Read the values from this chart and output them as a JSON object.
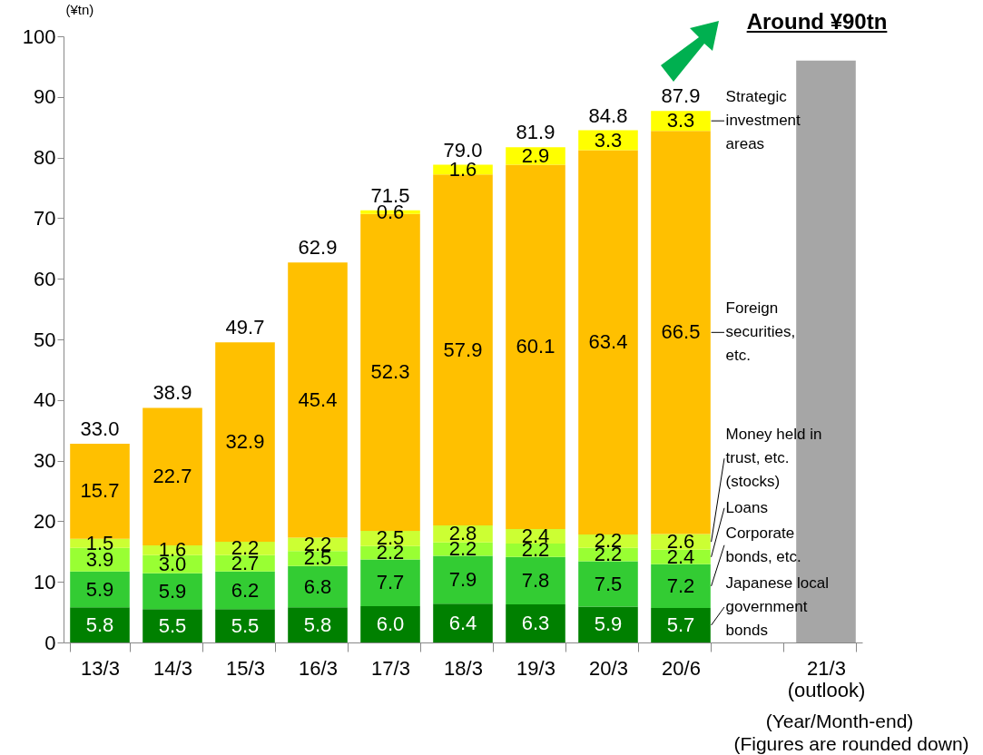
{
  "chart_data": {
    "type": "bar",
    "stacked": true,
    "data_labels": true,
    "ylabel": "(¥tn)",
    "categories": [
      "13/3",
      "14/3",
      "15/3",
      "16/3",
      "17/3",
      "18/3",
      "19/3",
      "20/3",
      "20/6",
      null,
      "21/3 (outlook)"
    ],
    "ylim": [
      0,
      100
    ],
    "yticks": [
      0,
      10,
      20,
      30,
      40,
      50,
      60,
      70,
      80,
      90,
      100
    ],
    "series": [
      {
        "name": "Japanese local government bonds",
        "color": "#008000",
        "values": [
          5.8,
          5.5,
          5.5,
          5.8,
          6.0,
          6.4,
          6.3,
          5.9,
          5.7,
          null,
          null
        ],
        "value_labels": [
          "5.8",
          "5.5",
          "5.5",
          "5.8",
          "6.0",
          "6.4",
          "6.3",
          "5.9",
          "5.7",
          null,
          null
        ]
      },
      {
        "name": "Corporate bonds, etc.",
        "color": "#33cc33",
        "values": [
          5.9,
          5.9,
          6.2,
          6.8,
          7.7,
          7.9,
          7.8,
          7.5,
          7.2,
          null,
          null
        ]
      },
      {
        "name": "Loans",
        "color": "#99ff33",
        "values": [
          3.9,
          3.0,
          2.7,
          2.5,
          2.2,
          2.2,
          2.2,
          2.2,
          2.4,
          null,
          null
        ],
        "value_labels": [
          "3.9",
          "3.0",
          "2.7",
          "2.5",
          "2.2",
          "2.2",
          "2.2",
          "2.2",
          "2.4",
          null,
          null
        ]
      },
      {
        "name": "Money held in trust, etc. (stocks)",
        "color": "#ccff33",
        "values": [
          1.5,
          1.6,
          2.2,
          2.2,
          2.5,
          2.8,
          2.4,
          2.2,
          2.6,
          null,
          null
        ]
      },
      {
        "name": "Foreign securities, etc.",
        "color": "#ffc000",
        "values": [
          15.7,
          22.7,
          32.9,
          45.4,
          52.3,
          57.9,
          60.1,
          63.4,
          66.5,
          null,
          null
        ]
      },
      {
        "name": "Strategic investment areas",
        "color": "#ffff00",
        "values": [
          null,
          null,
          null,
          null,
          0.6,
          1.6,
          2.9,
          3.3,
          3.3,
          null,
          null
        ]
      },
      {
        "color": "#a6a6a6",
        "values": [
          null,
          null,
          null,
          null,
          null,
          null,
          null,
          null,
          null,
          null,
          96
        ],
        "value_labels": [
          null,
          null,
          null,
          null,
          null,
          null,
          null,
          null,
          null,
          null,
          null
        ]
      }
    ],
    "totals": [
      "33.0",
      "38.9",
      "49.7",
      "62.9",
      "71.5",
      "79.0",
      "81.9",
      "84.8",
      "87.9",
      null,
      null
    ],
    "annotations": [
      "Around ¥90tn",
      "(Year/Month-end)",
      "(Figures are rounded down)"
    ]
  }
}
